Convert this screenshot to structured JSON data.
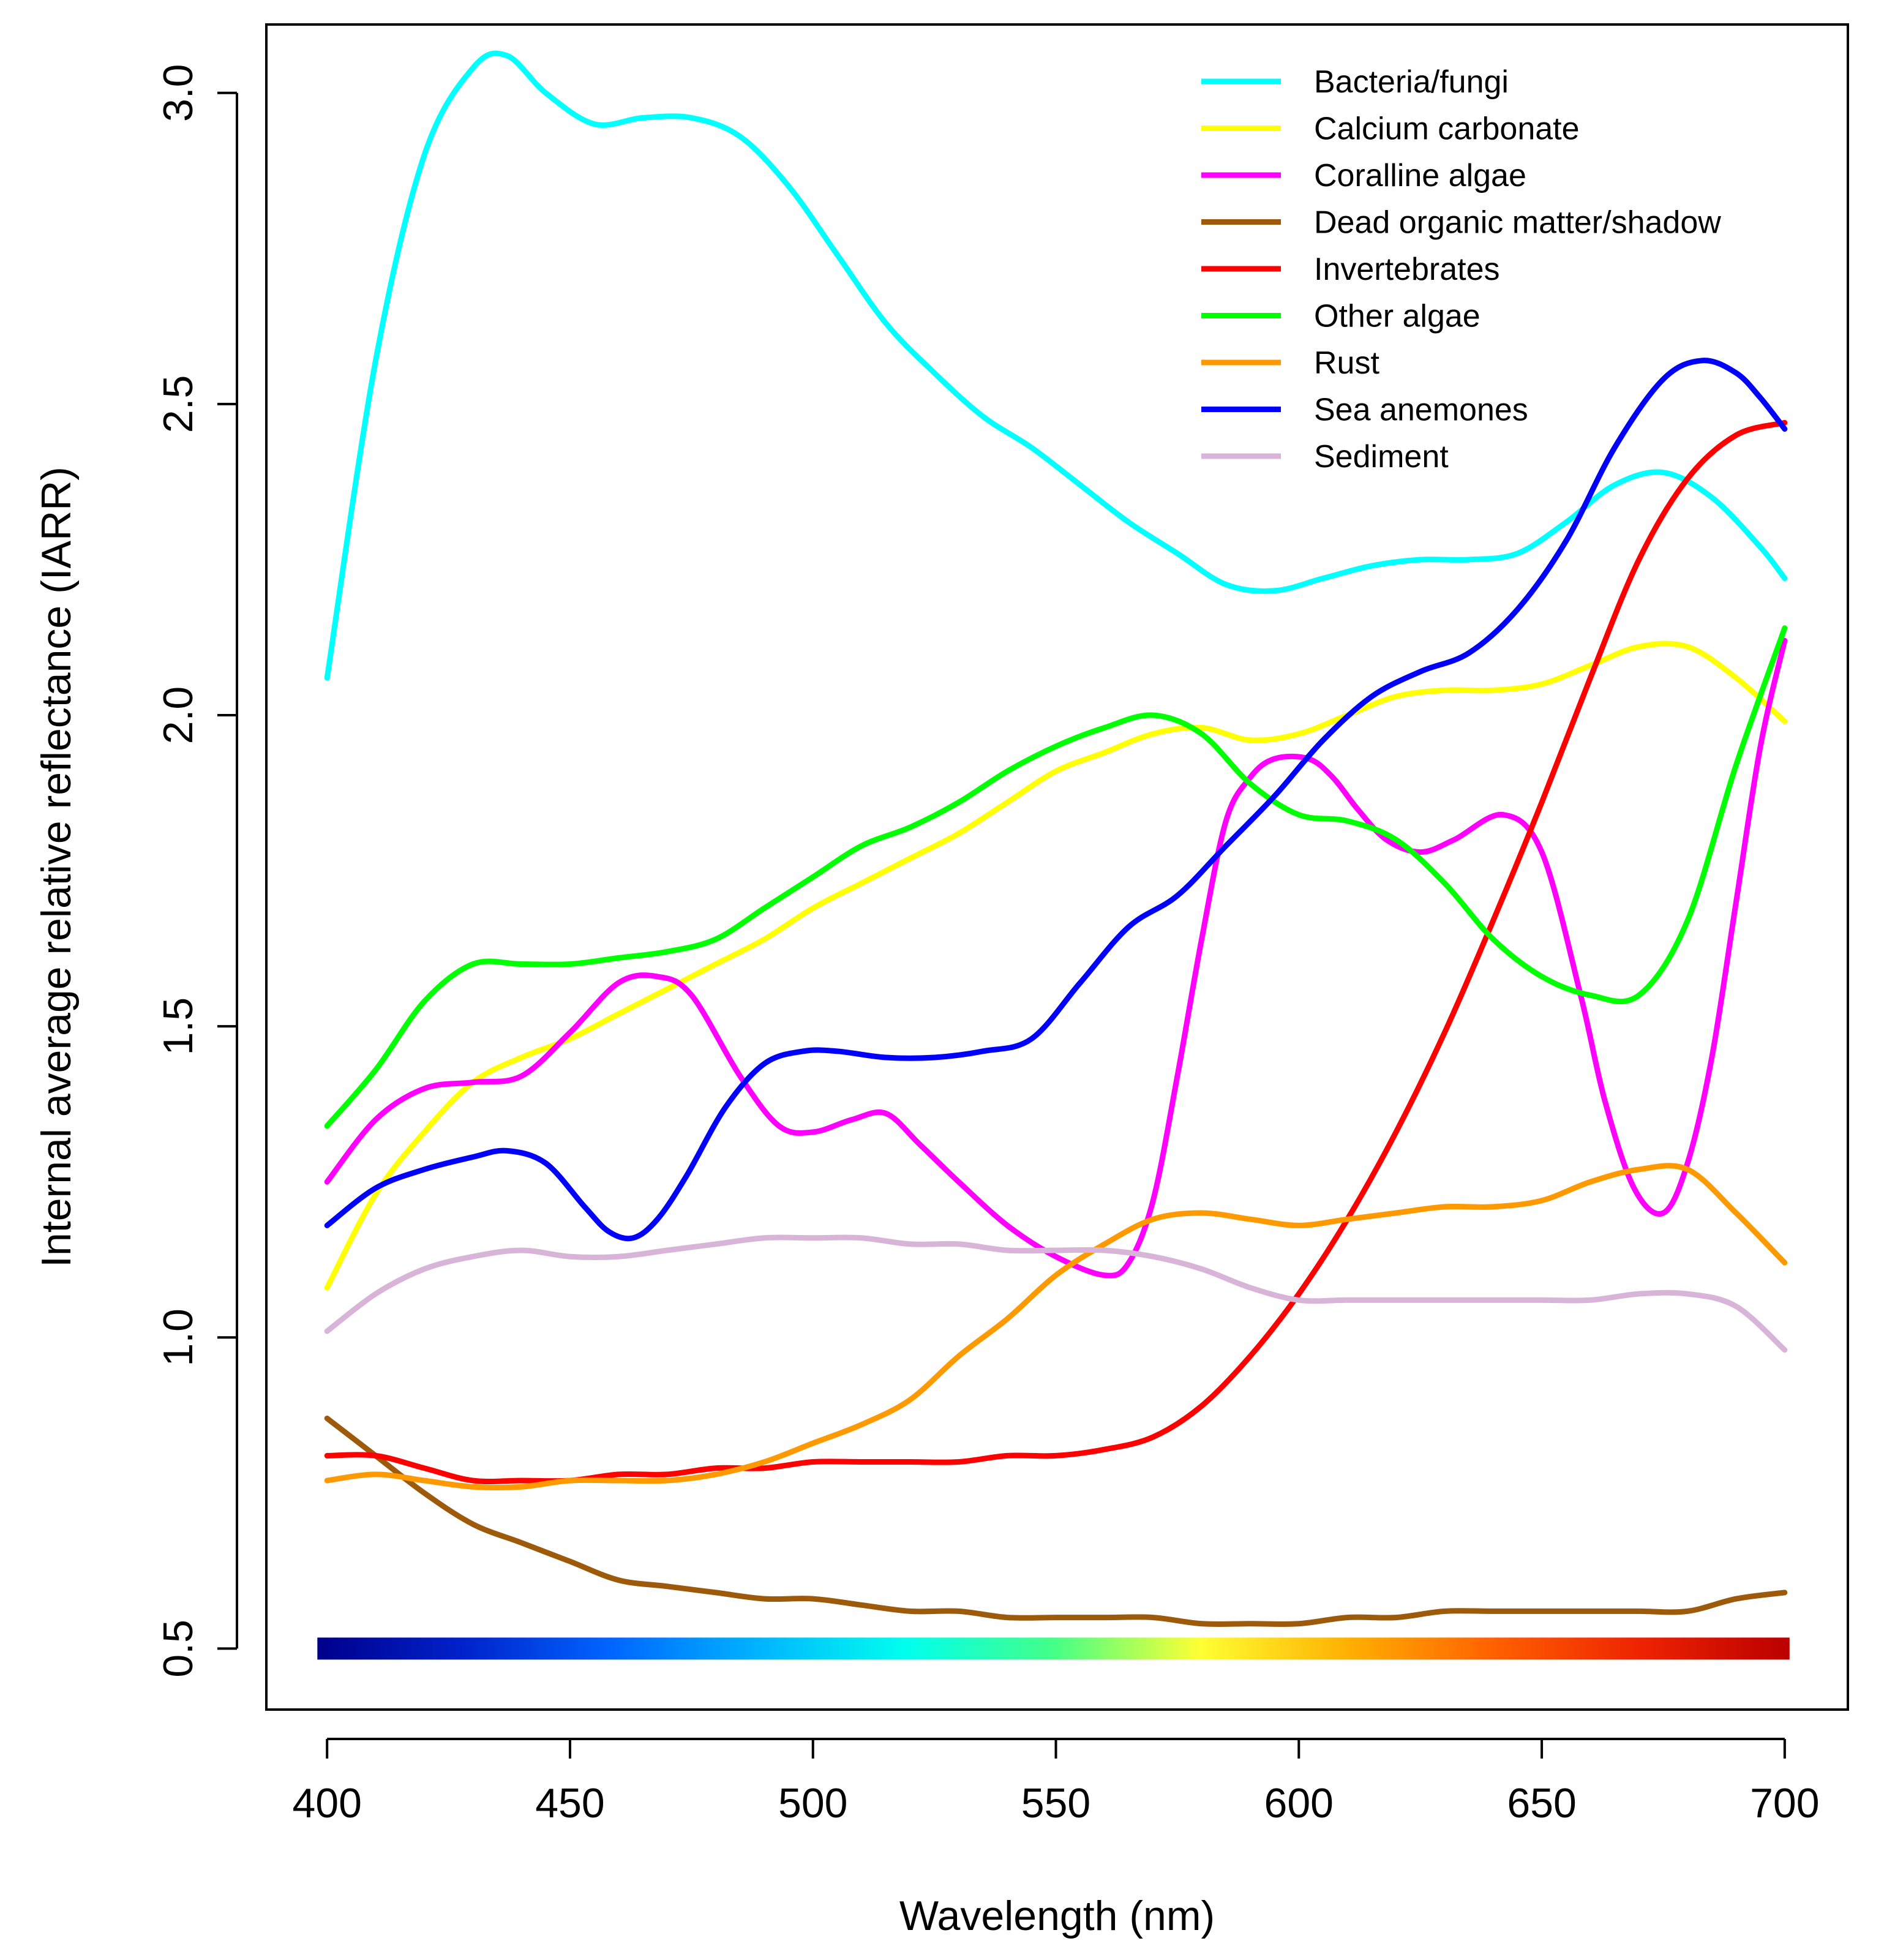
{
  "chart_data": {
    "type": "line",
    "title": "",
    "xlabel": "Wavelength (nm)",
    "ylabel": "Internal average relative reflectance (IARR)",
    "xlim": [
      387.5,
      713
    ],
    "ylim": [
      0.402,
      3.11
    ],
    "x_ticks": [
      400,
      450,
      500,
      550,
      600,
      650,
      700
    ],
    "y_ticks": [
      0.5,
      1.0,
      1.5,
      2.0,
      2.5,
      3.0
    ],
    "x_tick_labels": [
      "400",
      "450",
      "500",
      "550",
      "600",
      "650",
      "700"
    ],
    "y_tick_labels": [
      "0.5",
      "1.0",
      "1.5",
      "2.0",
      "2.5",
      "3.0"
    ],
    "grid": false,
    "legend_position": "top-right",
    "spectrum_bar": {
      "x_range": [
        398,
        701
      ],
      "y": 0.5,
      "colors": [
        "#00008b",
        "#0022cc",
        "#0066ff",
        "#00b4ff",
        "#00ffee",
        "#44ff88",
        "#ffff33",
        "#ffb000",
        "#ff6000",
        "#ee2200",
        "#bb0000"
      ]
    },
    "series": [
      {
        "name": "Bacteria/fungi",
        "color": "#00ffff",
        "x": [
          400,
          410,
          420,
          430,
          437,
          445,
          455,
          465,
          475,
          485,
          495,
          505,
          515,
          525,
          535,
          545,
          555,
          565,
          575,
          585,
          595,
          605,
          615,
          625,
          635,
          645,
          655,
          665,
          675,
          685,
          695,
          700
        ],
        "values": [
          2.06,
          2.57,
          2.9,
          3.04,
          3.06,
          3.0,
          2.95,
          2.96,
          2.96,
          2.93,
          2.85,
          2.74,
          2.63,
          2.55,
          2.48,
          2.43,
          2.37,
          2.31,
          2.26,
          2.21,
          2.2,
          2.22,
          2.24,
          2.25,
          2.25,
          2.26,
          2.31,
          2.37,
          2.39,
          2.35,
          2.27,
          2.22
        ]
      },
      {
        "name": "Calcium carbonate",
        "color": "#ffff00",
        "x": [
          400,
          410,
          420,
          430,
          440,
          450,
          460,
          470,
          480,
          490,
          500,
          510,
          520,
          530,
          540,
          550,
          560,
          570,
          580,
          590,
          600,
          610,
          620,
          630,
          640,
          650,
          660,
          670,
          680,
          690,
          700
        ],
        "values": [
          1.08,
          1.23,
          1.33,
          1.41,
          1.45,
          1.48,
          1.52,
          1.56,
          1.6,
          1.64,
          1.69,
          1.73,
          1.77,
          1.81,
          1.86,
          1.91,
          1.94,
          1.97,
          1.98,
          1.96,
          1.97,
          2.0,
          2.03,
          2.04,
          2.04,
          2.05,
          2.08,
          2.11,
          2.11,
          2.06,
          1.99
        ]
      },
      {
        "name": "Coralline algae",
        "color": "#ff00ff",
        "x": [
          400,
          410,
          420,
          430,
          440,
          450,
          460,
          468,
          475,
          485,
          493,
          500,
          508,
          515,
          522,
          530,
          540,
          550,
          560,
          565,
          570,
          575,
          580,
          585,
          590,
          595,
          602,
          607,
          612,
          618,
          625,
          632,
          642,
          650,
          658,
          663,
          669,
          675,
          680,
          685,
          690,
          695,
          700
        ],
        "values": [
          1.25,
          1.35,
          1.4,
          1.41,
          1.42,
          1.49,
          1.57,
          1.58,
          1.55,
          1.42,
          1.34,
          1.33,
          1.35,
          1.36,
          1.31,
          1.25,
          1.18,
          1.13,
          1.1,
          1.12,
          1.22,
          1.42,
          1.64,
          1.83,
          1.9,
          1.93,
          1.93,
          1.9,
          1.85,
          1.8,
          1.78,
          1.8,
          1.84,
          1.78,
          1.55,
          1.38,
          1.24,
          1.2,
          1.28,
          1.45,
          1.7,
          1.95,
          2.12
        ]
      },
      {
        "name": "Dead organic matter/shadow",
        "color": "#9c5a0a",
        "x": [
          400,
          410,
          420,
          430,
          440,
          450,
          460,
          470,
          480,
          490,
          500,
          510,
          520,
          530,
          540,
          550,
          560,
          570,
          580,
          590,
          600,
          610,
          620,
          630,
          640,
          650,
          660,
          670,
          680,
          690,
          700
        ],
        "values": [
          0.87,
          0.81,
          0.75,
          0.7,
          0.67,
          0.64,
          0.61,
          0.6,
          0.59,
          0.58,
          0.58,
          0.57,
          0.56,
          0.56,
          0.55,
          0.55,
          0.55,
          0.55,
          0.54,
          0.54,
          0.54,
          0.55,
          0.55,
          0.56,
          0.56,
          0.56,
          0.56,
          0.56,
          0.56,
          0.58,
          0.59
        ]
      },
      {
        "name": "Invertebrates",
        "color": "#ff0000",
        "x": [
          400,
          410,
          420,
          430,
          440,
          450,
          460,
          470,
          480,
          490,
          500,
          510,
          520,
          530,
          540,
          550,
          560,
          570,
          580,
          590,
          600,
          610,
          620,
          630,
          640,
          650,
          660,
          670,
          680,
          690,
          700
        ],
        "values": [
          0.81,
          0.81,
          0.79,
          0.77,
          0.77,
          0.77,
          0.78,
          0.78,
          0.79,
          0.79,
          0.8,
          0.8,
          0.8,
          0.8,
          0.81,
          0.81,
          0.82,
          0.84,
          0.89,
          0.97,
          1.07,
          1.19,
          1.33,
          1.49,
          1.67,
          1.86,
          2.06,
          2.25,
          2.38,
          2.45,
          2.47
        ]
      },
      {
        "name": "Other algae",
        "color": "#00ff00",
        "x": [
          400,
          410,
          420,
          430,
          440,
          450,
          460,
          470,
          480,
          490,
          500,
          510,
          520,
          530,
          540,
          550,
          560,
          570,
          580,
          590,
          600,
          610,
          620,
          630,
          640,
          650,
          660,
          670,
          680,
          690,
          700
        ],
        "values": [
          1.34,
          1.43,
          1.54,
          1.6,
          1.6,
          1.6,
          1.61,
          1.62,
          1.64,
          1.69,
          1.74,
          1.79,
          1.82,
          1.86,
          1.91,
          1.95,
          1.98,
          2.0,
          1.97,
          1.89,
          1.84,
          1.83,
          1.8,
          1.73,
          1.64,
          1.58,
          1.55,
          1.55,
          1.67,
          1.92,
          2.14
        ]
      },
      {
        "name": "Rust",
        "color": "#ff9900",
        "x": [
          400,
          410,
          420,
          430,
          440,
          450,
          460,
          470,
          480,
          490,
          500,
          510,
          520,
          530,
          540,
          550,
          560,
          570,
          580,
          590,
          600,
          610,
          620,
          630,
          640,
          650,
          660,
          670,
          680,
          690,
          700
        ],
        "values": [
          0.77,
          0.78,
          0.77,
          0.76,
          0.76,
          0.77,
          0.77,
          0.77,
          0.78,
          0.8,
          0.83,
          0.86,
          0.9,
          0.97,
          1.03,
          1.1,
          1.15,
          1.19,
          1.2,
          1.19,
          1.18,
          1.19,
          1.2,
          1.21,
          1.21,
          1.22,
          1.25,
          1.27,
          1.27,
          1.2,
          1.12
        ]
      },
      {
        "name": "Sea anemones",
        "color": "#0000ff",
        "x": [
          400,
          410,
          420,
          430,
          437,
          445,
          453,
          458,
          463,
          468,
          474,
          482,
          490,
          498,
          505,
          515,
          525,
          535,
          545,
          555,
          565,
          575,
          585,
          595,
          605,
          615,
          625,
          635,
          645,
          655,
          665,
          675,
          683,
          690,
          695,
          700
        ],
        "values": [
          1.18,
          1.24,
          1.27,
          1.29,
          1.3,
          1.28,
          1.21,
          1.17,
          1.16,
          1.19,
          1.26,
          1.37,
          1.44,
          1.46,
          1.46,
          1.45,
          1.45,
          1.46,
          1.48,
          1.57,
          1.66,
          1.71,
          1.79,
          1.87,
          1.96,
          2.03,
          2.07,
          2.1,
          2.17,
          2.28,
          2.43,
          2.54,
          2.57,
          2.55,
          2.51,
          2.46
        ]
      },
      {
        "name": "Sediment",
        "color": "#d8b4d8",
        "x": [
          400,
          410,
          420,
          430,
          440,
          450,
          460,
          470,
          480,
          490,
          500,
          510,
          520,
          530,
          540,
          550,
          560,
          570,
          580,
          590,
          600,
          610,
          620,
          630,
          640,
          650,
          660,
          670,
          680,
          690,
          700
        ],
        "values": [
          1.01,
          1.07,
          1.11,
          1.13,
          1.14,
          1.13,
          1.13,
          1.14,
          1.15,
          1.16,
          1.16,
          1.16,
          1.15,
          1.15,
          1.14,
          1.14,
          1.14,
          1.13,
          1.11,
          1.08,
          1.06,
          1.06,
          1.06,
          1.06,
          1.06,
          1.06,
          1.06,
          1.07,
          1.07,
          1.05,
          0.98
        ]
      }
    ]
  }
}
